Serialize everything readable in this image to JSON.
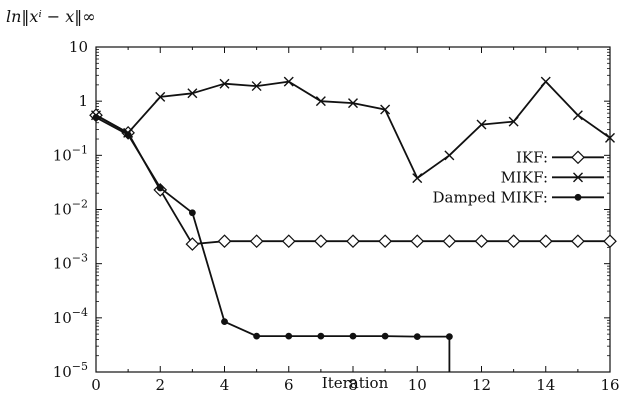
{
  "chart_data": {
    "type": "line",
    "ylabel": "ln‖xⁱ − x‖∞",
    "xlabel": "Iteration",
    "xlim": [
      0,
      16
    ],
    "ylim": [
      1e-05,
      10
    ],
    "yscale": "log",
    "grid": false,
    "legend_position": "right",
    "x_ticks": [
      0,
      2,
      4,
      6,
      8,
      10,
      12,
      14,
      16
    ],
    "x_tick_labels": [
      "0",
      "2",
      "4",
      "6",
      "8",
      "10",
      "12",
      "14",
      "16"
    ],
    "y_ticks": [
      10,
      1,
      0.1,
      0.01,
      0.001,
      0.0001,
      1e-05
    ],
    "y_tick_labels": [
      {
        "base": "10",
        "exp": ""
      },
      {
        "base": "1",
        "exp": ""
      },
      {
        "base": "10",
        "exp": "−1"
      },
      {
        "base": "10",
        "exp": "−2"
      },
      {
        "base": "10",
        "exp": "−3"
      },
      {
        "base": "10",
        "exp": "−4"
      },
      {
        "base": "10",
        "exp": "−5"
      }
    ],
    "series": [
      {
        "name": "IKF:",
        "marker": "diamond",
        "color": "#111111",
        "x": [
          0,
          1,
          2,
          3,
          4,
          5,
          6,
          7,
          8,
          9,
          10,
          11,
          12,
          13,
          14,
          15,
          16
        ],
        "y": [
          0.55,
          0.26,
          0.023,
          0.0023,
          0.0026,
          0.0026,
          0.0026,
          0.0026,
          0.0026,
          0.0026,
          0.0026,
          0.0026,
          0.0026,
          0.0026,
          0.0026,
          0.0026,
          0.0026
        ]
      },
      {
        "name": "MIKF:",
        "marker": "x",
        "color": "#111111",
        "x": [
          0,
          1,
          2,
          3,
          4,
          5,
          6,
          7,
          8,
          9,
          10,
          11,
          12,
          13,
          14,
          15,
          16
        ],
        "y": [
          0.55,
          0.26,
          1.2,
          1.4,
          2.1,
          1.9,
          2.3,
          1.0,
          0.92,
          0.7,
          0.038,
          0.1,
          0.37,
          0.42,
          2.3,
          0.55,
          0.21
        ]
      },
      {
        "name": "Damped MIKF:",
        "marker": "dot",
        "color": "#111111",
        "x": [
          0,
          1,
          2,
          3,
          4,
          5,
          6,
          7,
          8,
          9,
          10,
          11
        ],
        "y": [
          0.5,
          0.24,
          0.025,
          0.0087,
          8.5e-05,
          4.6e-05,
          4.6e-05,
          4.6e-05,
          4.6e-05,
          4.6e-05,
          4.5e-05,
          4.5e-05
        ],
        "drop_to_axis_after_last": true
      }
    ]
  }
}
